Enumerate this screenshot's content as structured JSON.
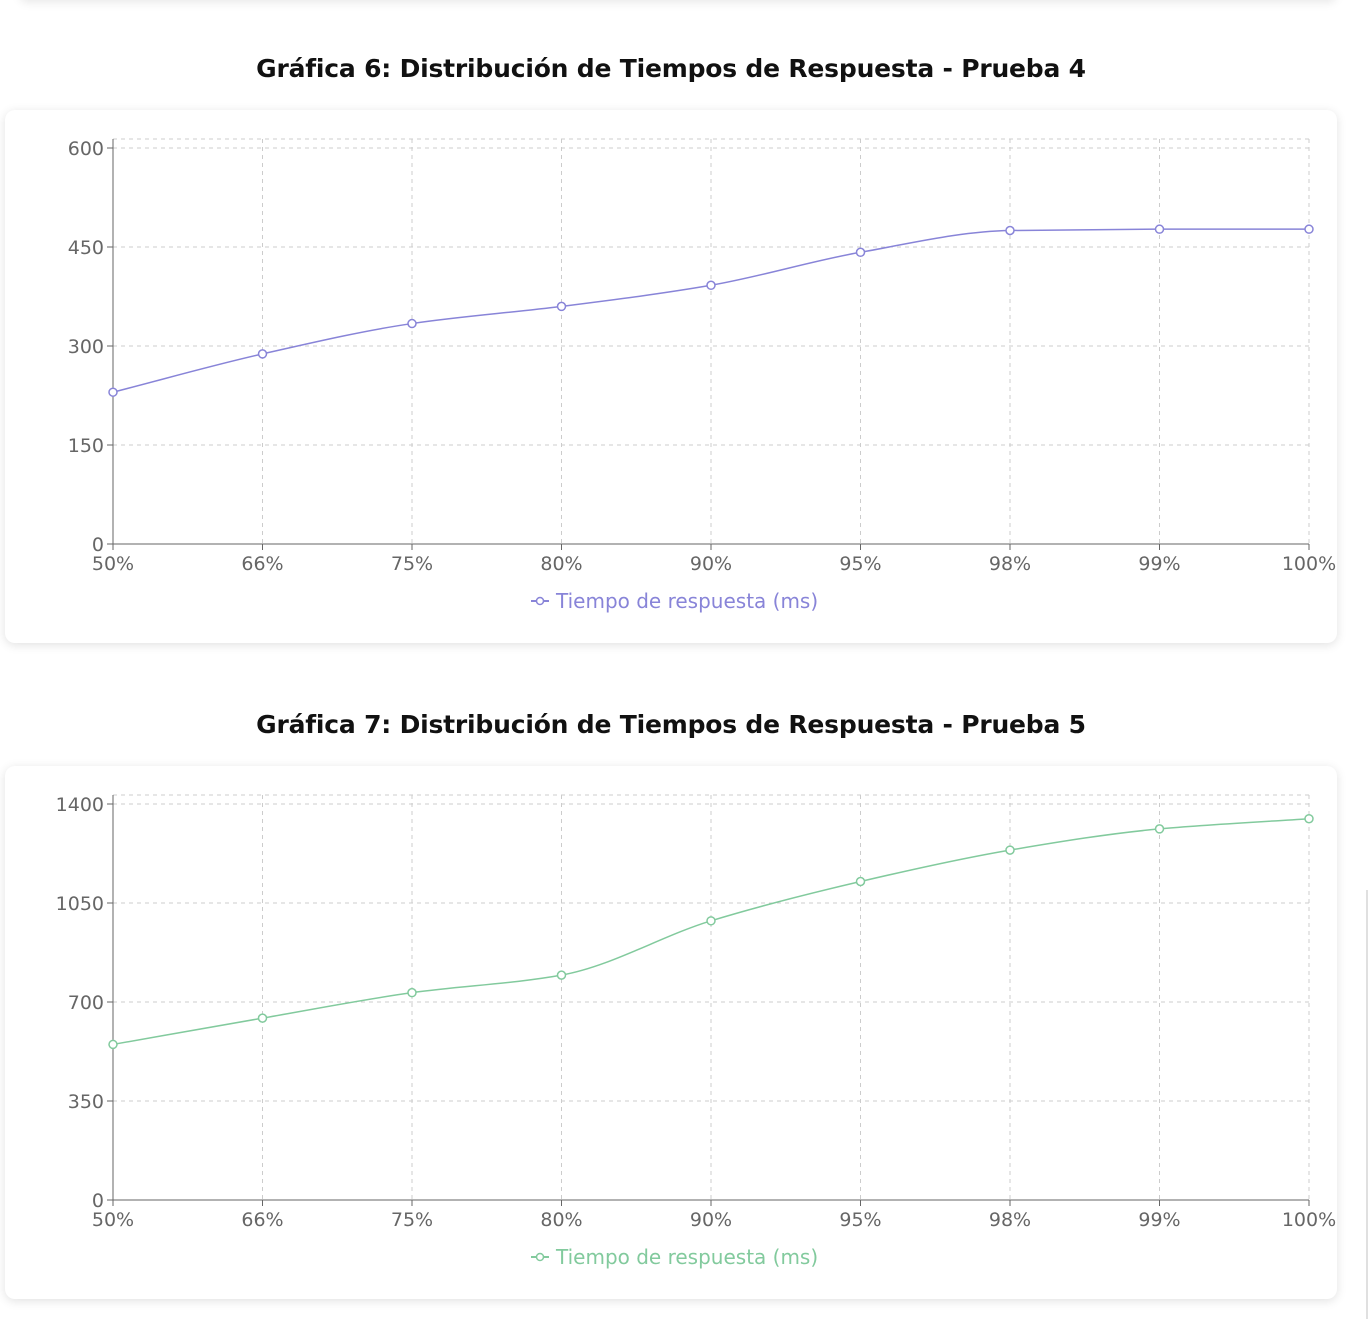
{
  "chart_data": [
    {
      "type": "line",
      "title": "Gráfica 6: Distribución de Tiempos de Respuesta - Prueba 4",
      "categories": [
        "50%",
        "66%",
        "75%",
        "80%",
        "90%",
        "95%",
        "98%",
        "99%",
        "100%"
      ],
      "series": [
        {
          "name": "Tiempo de respuesta (ms)",
          "values": [
            230,
            288,
            334,
            360,
            392,
            442,
            475,
            477,
            477
          ],
          "color": "#8884d8"
        }
      ],
      "yticks": [
        "0",
        "150",
        "300",
        "450",
        "600"
      ],
      "ylim": [
        0,
        600
      ],
      "grid": true,
      "legend": "bottom-center"
    },
    {
      "type": "line",
      "title": "Gráfica 7: Distribución de Tiempos de Respuesta - Prueba 5",
      "categories": [
        "50%",
        "66%",
        "75%",
        "80%",
        "90%",
        "95%",
        "98%",
        "99%",
        "100%"
      ],
      "series": [
        {
          "name": "Tiempo de respuesta (ms)",
          "values": [
            550,
            643,
            733,
            795,
            987,
            1126,
            1237,
            1312,
            1348
          ],
          "color": "#82ca9d"
        }
      ],
      "yticks": [
        "0",
        "350",
        "700",
        "1050",
        "1400"
      ],
      "ylim": [
        0,
        1400
      ],
      "grid": true,
      "legend": "bottom-center"
    }
  ]
}
